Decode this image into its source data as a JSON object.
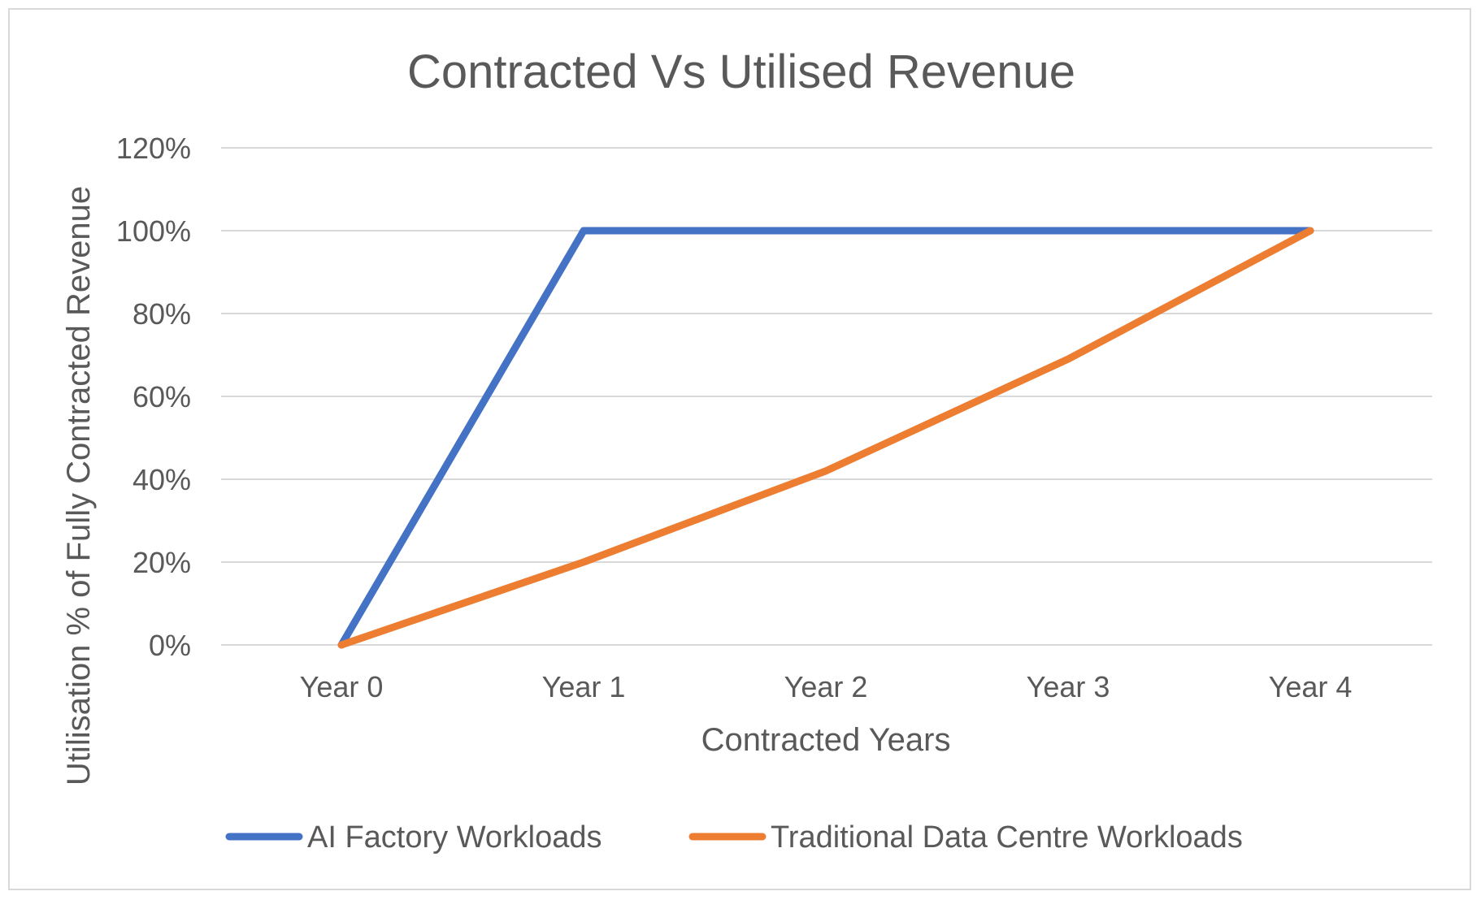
{
  "chart_data": {
    "type": "line",
    "title": "Contracted Vs Utilised Revenue",
    "xlabel": "Contracted Years",
    "ylabel": "Utilisation % of Fully Contracted Revenue",
    "categories": [
      "Year 0",
      "Year 1",
      "Year 2",
      "Year 3",
      "Year 4"
    ],
    "y_ticks": [
      "0%",
      "20%",
      "40%",
      "60%",
      "80%",
      "100%",
      "120%"
    ],
    "ylim": [
      0,
      120
    ],
    "grid": true,
    "legend_position": "bottom",
    "series": [
      {
        "name": "AI Factory Workloads",
        "color": "#4472c4",
        "values": [
          0,
          100,
          100,
          100,
          100
        ]
      },
      {
        "name": "Traditional Data Centre Workloads",
        "color": "#ed7d31",
        "values": [
          0,
          20,
          42,
          69,
          100
        ]
      }
    ]
  }
}
